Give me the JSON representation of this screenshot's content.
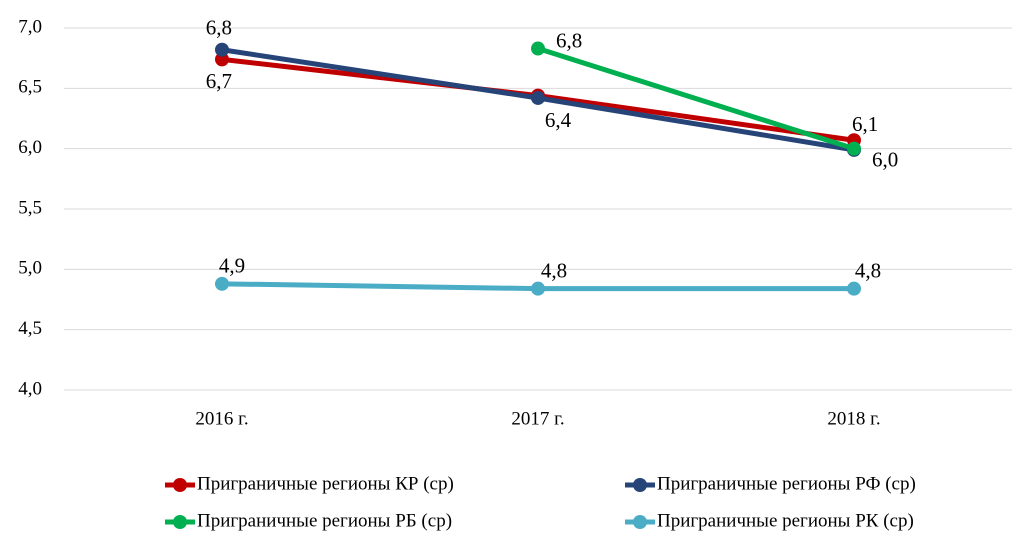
{
  "chart_data": {
    "type": "line",
    "categories": [
      "2016 г.",
      "2017 г.",
      "2018 г."
    ],
    "series": [
      {
        "name": "Приграничные регионы КР (ср)",
        "color": "#c00000",
        "values": [
          6.74,
          6.44,
          6.07
        ],
        "value_labels": [
          "6,7",
          null,
          "6,1"
        ]
      },
      {
        "name": "Приграничные регионы РФ (ср)",
        "color": "#264478",
        "values": [
          6.82,
          6.42,
          5.99
        ],
        "value_labels": [
          "6,8",
          "6,4",
          "6,0"
        ]
      },
      {
        "name": "Приграничные регионы РБ (ср)",
        "color": "#00b050",
        "values": [
          null,
          6.83,
          6.0
        ],
        "value_labels": [
          null,
          "6,8",
          null
        ]
      },
      {
        "name": "Приграничные регионы РК (ср)",
        "color": "#4bacc6",
        "values": [
          4.88,
          4.84,
          4.84
        ],
        "value_labels": [
          "4,9",
          "4,8",
          "4,8"
        ]
      }
    ],
    "ylim": [
      4.0,
      7.0
    ],
    "yticks": [
      {
        "value": 4.0,
        "label": "4,0"
      },
      {
        "value": 4.5,
        "label": "4,5"
      },
      {
        "value": 5.0,
        "label": "5,0"
      },
      {
        "value": 5.5,
        "label": "5,5"
      },
      {
        "value": 6.0,
        "label": "6,0"
      },
      {
        "value": 6.5,
        "label": "6,5"
      },
      {
        "value": 7.0,
        "label": "7,0"
      }
    ],
    "grid": true,
    "legend": "bottom"
  }
}
